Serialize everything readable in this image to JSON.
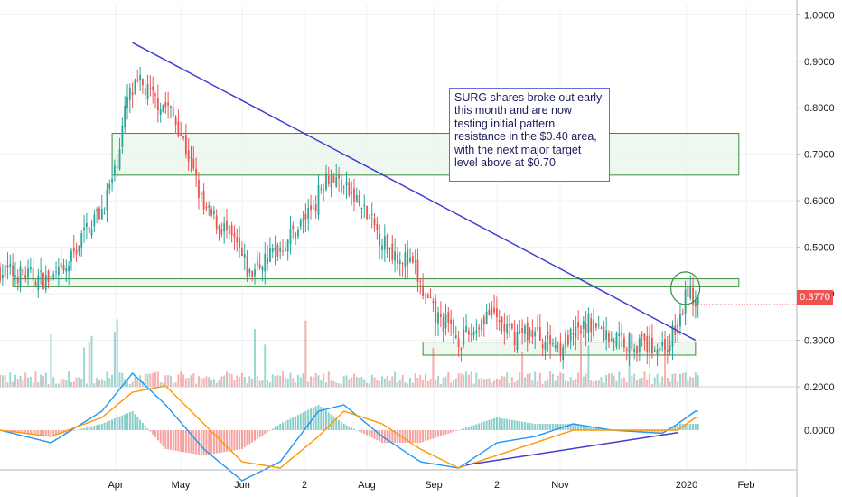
{
  "chart_data": {
    "type": "candlestick",
    "symbol": "SURG",
    "x_tick_labels": [
      "Apr",
      "May",
      "Jun",
      "2",
      "Aug",
      "Sep",
      "2",
      "Nov",
      "2020",
      "Feb"
    ],
    "price_axis": {
      "ticks": [
        "1.0000",
        "0.9000",
        "0.8000",
        "0.7000",
        "0.6000",
        "0.5000",
        "0.4000",
        "0.3000",
        "0.2000"
      ],
      "ylim": [
        0.2,
        1.02
      ]
    },
    "oscillator_axis": {
      "ticks": [
        "0.0000"
      ]
    },
    "last_price": "0.3770",
    "annotation": "SURG shares broke out early this month and are now testing initial pattern resistance in the $0.40 area, with the next major target level above at $0.70.",
    "price_path": [
      {
        "i": 0,
        "p": 0.45
      },
      {
        "i": 18,
        "p": 0.43
      },
      {
        "i": 25,
        "p": 0.44
      },
      {
        "i": 30,
        "p": 0.5
      },
      {
        "i": 35,
        "p": 0.55
      },
      {
        "i": 40,
        "p": 0.58
      },
      {
        "i": 45,
        "p": 0.66
      },
      {
        "i": 50,
        "p": 0.82
      },
      {
        "i": 55,
        "p": 0.85
      },
      {
        "i": 60,
        "p": 0.82
      },
      {
        "i": 66,
        "p": 0.8
      },
      {
        "i": 70,
        "p": 0.76
      },
      {
        "i": 75,
        "p": 0.68
      },
      {
        "i": 80,
        "p": 0.58
      },
      {
        "i": 88,
        "p": 0.54
      },
      {
        "i": 93,
        "p": 0.5
      },
      {
        "i": 98,
        "p": 0.44
      },
      {
        "i": 103,
        "p": 0.47
      },
      {
        "i": 110,
        "p": 0.5
      },
      {
        "i": 118,
        "p": 0.55
      },
      {
        "i": 124,
        "p": 0.6
      },
      {
        "i": 128,
        "p": 0.66
      },
      {
        "i": 133,
        "p": 0.64
      },
      {
        "i": 140,
        "p": 0.6
      },
      {
        "i": 146,
        "p": 0.55
      },
      {
        "i": 152,
        "p": 0.5
      },
      {
        "i": 158,
        "p": 0.48
      },
      {
        "i": 163,
        "p": 0.45
      },
      {
        "i": 166,
        "p": 0.4
      },
      {
        "i": 171,
        "p": 0.35
      },
      {
        "i": 176,
        "p": 0.33
      },
      {
        "i": 181,
        "p": 0.3
      },
      {
        "i": 186,
        "p": 0.32
      },
      {
        "i": 191,
        "p": 0.36
      },
      {
        "i": 196,
        "p": 0.34
      },
      {
        "i": 201,
        "p": 0.31
      },
      {
        "i": 208,
        "p": 0.32
      },
      {
        "i": 214,
        "p": 0.3
      },
      {
        "i": 220,
        "p": 0.29
      },
      {
        "i": 226,
        "p": 0.31
      },
      {
        "i": 232,
        "p": 0.34
      },
      {
        "i": 238,
        "p": 0.31
      },
      {
        "i": 245,
        "p": 0.3
      },
      {
        "i": 252,
        "p": 0.29
      },
      {
        "i": 258,
        "p": 0.29
      },
      {
        "i": 262,
        "p": 0.29
      },
      {
        "i": 266,
        "p": 0.33
      },
      {
        "i": 270,
        "p": 0.41
      },
      {
        "i": 273,
        "p": 0.377
      }
    ],
    "oscillator_path": [
      {
        "i": 0,
        "m": 0.0,
        "s": 0.0
      },
      {
        "i": 20,
        "m": -0.02,
        "s": -0.01
      },
      {
        "i": 40,
        "m": 0.03,
        "s": 0.02
      },
      {
        "i": 52,
        "m": 0.09,
        "s": 0.06
      },
      {
        "i": 65,
        "m": 0.04,
        "s": 0.07
      },
      {
        "i": 80,
        "m": -0.03,
        "s": 0.01
      },
      {
        "i": 95,
        "m": -0.08,
        "s": -0.05
      },
      {
        "i": 110,
        "m": -0.05,
        "s": -0.06
      },
      {
        "i": 125,
        "m": 0.03,
        "s": -0.01
      },
      {
        "i": 135,
        "m": 0.04,
        "s": 0.03
      },
      {
        "i": 150,
        "m": -0.01,
        "s": 0.01
      },
      {
        "i": 165,
        "m": -0.05,
        "s": -0.03
      },
      {
        "i": 180,
        "m": -0.06,
        "s": -0.06
      },
      {
        "i": 195,
        "m": -0.02,
        "s": -0.04
      },
      {
        "i": 210,
        "m": -0.01,
        "s": -0.02
      },
      {
        "i": 225,
        "m": 0.01,
        "s": 0.0
      },
      {
        "i": 240,
        "m": 0.0,
        "s": 0.0
      },
      {
        "i": 260,
        "m": -0.005,
        "s": 0.0
      },
      {
        "i": 266,
        "m": 0.01,
        "s": 0.0
      },
      {
        "i": 273,
        "m": 0.03,
        "s": 0.02
      }
    ],
    "trendlines": [
      {
        "name": "descending-resistance",
        "from": {
          "i": 52,
          "p": 0.94
        },
        "to": {
          "i": 273,
          "p": 0.3
        }
      }
    ],
    "zones": [
      {
        "name": "target-zone",
        "i0": 44,
        "i1": 290,
        "p_low": 0.655,
        "p_high": 0.745
      },
      {
        "name": "resistance-zone",
        "i0": 5,
        "i1": 290,
        "p_low": 0.415,
        "p_high": 0.432
      },
      {
        "name": "support-zone",
        "i0": 166,
        "i1": 273,
        "p_low": 0.268,
        "p_high": 0.296
      }
    ],
    "breakout_circle": {
      "i": 269,
      "p": 0.412
    },
    "oscillator_trendline": {
      "from": {
        "i": 183,
        "m": -0.055
      },
      "to": {
        "i": 266,
        "m": -0.004
      }
    },
    "colors": {
      "up": "#26a69a",
      "down": "#ef5350",
      "trendline": "#3f3fd1",
      "zone_fill": "#e8f5e9",
      "zone_border": "#388e3c",
      "macd_line": "#2196f3",
      "signal_line": "#ff9800",
      "grid": "#eef0f3",
      "axis_text": "#131722",
      "price_label_bg": "#ef5350"
    }
  }
}
